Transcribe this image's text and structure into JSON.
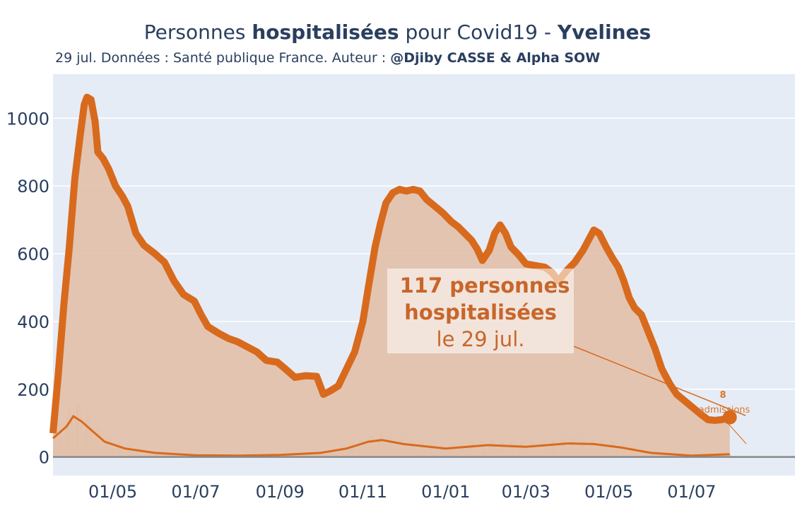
{
  "title": {
    "part1": "Personnes ",
    "part2": "hospitalisées",
    "part3": " pour Covid19 - ",
    "part4": "Yvelines"
  },
  "subtitle": {
    "prefix": "29 jul. Données : Santé publique France. Auteur : ",
    "authors": "@Djiby CASSE & Alpha SOW"
  },
  "colors": {
    "plot_bg": "#e5ecf6",
    "line": "#d86a1d",
    "fill": "#e2c0a8",
    "grid": "#ffffff",
    "zero_line": "#888888",
    "annotation": "#c8662a"
  },
  "annotation": {
    "line1": "117 personnes",
    "line2": "hospitalisées",
    "line3": "le 29 jul.",
    "small_value": "8",
    "small_label": "admissions"
  },
  "chart_data": {
    "type": "area",
    "x_axis": {
      "range": [
        "2020-03-18",
        "2021-09-15"
      ],
      "ticks": [
        {
          "date": "2020-05-01",
          "label": "01/05"
        },
        {
          "date": "2020-07-01",
          "label": "01/07"
        },
        {
          "date": "2020-09-01",
          "label": "01/09"
        },
        {
          "date": "2020-11-01",
          "label": "01/11"
        },
        {
          "date": "2021-01-01",
          "label": "01/01"
        },
        {
          "date": "2021-03-01",
          "label": "01/03"
        },
        {
          "date": "2021-05-01",
          "label": "01/05"
        },
        {
          "date": "2021-07-01",
          "label": "01/07"
        }
      ]
    },
    "y_axis": {
      "range": [
        -55,
        1130
      ],
      "ticks": [
        0,
        200,
        400,
        600,
        800,
        1000
      ],
      "grid": true
    },
    "series": [
      {
        "type": "area",
        "points": [
          [
            "2020-03-18",
            70
          ],
          [
            "2020-03-22",
            250
          ],
          [
            "2020-03-26",
            450
          ],
          [
            "2020-03-30",
            620
          ],
          [
            "2020-04-03",
            820
          ],
          [
            "2020-04-07",
            950
          ],
          [
            "2020-04-10",
            1040
          ],
          [
            "2020-04-12",
            1062
          ],
          [
            "2020-04-15",
            1055
          ],
          [
            "2020-04-18",
            990
          ],
          [
            "2020-04-20",
            900
          ],
          [
            "2020-04-24",
            880
          ],
          [
            "2020-04-28",
            850
          ],
          [
            "2020-05-03",
            800
          ],
          [
            "2020-05-08",
            770
          ],
          [
            "2020-05-12",
            740
          ],
          [
            "2020-05-18",
            660
          ],
          [
            "2020-05-24",
            625
          ],
          [
            "2020-06-01",
            600
          ],
          [
            "2020-06-08",
            575
          ],
          [
            "2020-06-15",
            520
          ],
          [
            "2020-06-22",
            480
          ],
          [
            "2020-06-30",
            460
          ],
          [
            "2020-07-05",
            420
          ],
          [
            "2020-07-10",
            385
          ],
          [
            "2020-07-18",
            365
          ],
          [
            "2020-07-25",
            350
          ],
          [
            "2020-08-01",
            340
          ],
          [
            "2020-08-08",
            325
          ],
          [
            "2020-08-15",
            310
          ],
          [
            "2020-08-22",
            285
          ],
          [
            "2020-08-30",
            280
          ],
          [
            "2020-09-05",
            260
          ],
          [
            "2020-09-12",
            235
          ],
          [
            "2020-09-20",
            240
          ],
          [
            "2020-09-28",
            238
          ],
          [
            "2020-10-03",
            185
          ],
          [
            "2020-10-08",
            195
          ],
          [
            "2020-10-14",
            210
          ],
          [
            "2020-10-20",
            260
          ],
          [
            "2020-10-26",
            310
          ],
          [
            "2020-11-01",
            400
          ],
          [
            "2020-11-05",
            500
          ],
          [
            "2020-11-10",
            620
          ],
          [
            "2020-11-14",
            690
          ],
          [
            "2020-11-18",
            750
          ],
          [
            "2020-11-23",
            780
          ],
          [
            "2020-11-28",
            790
          ],
          [
            "2020-12-03",
            785
          ],
          [
            "2020-12-08",
            790
          ],
          [
            "2020-12-13",
            785
          ],
          [
            "2020-12-18",
            760
          ],
          [
            "2020-12-24",
            740
          ],
          [
            "2020-12-30",
            720
          ],
          [
            "2021-01-05",
            695
          ],
          [
            "2021-01-10",
            680
          ],
          [
            "2021-01-15",
            660
          ],
          [
            "2021-01-20",
            640
          ],
          [
            "2021-01-24",
            615
          ],
          [
            "2021-01-28",
            580
          ],
          [
            "2021-02-02",
            610
          ],
          [
            "2021-02-06",
            660
          ],
          [
            "2021-02-10",
            685
          ],
          [
            "2021-02-14",
            660
          ],
          [
            "2021-02-18",
            620
          ],
          [
            "2021-02-24",
            595
          ],
          [
            "2021-03-01",
            570
          ],
          [
            "2021-03-08",
            565
          ],
          [
            "2021-03-15",
            560
          ],
          [
            "2021-03-20",
            545
          ],
          [
            "2021-03-25",
            520
          ],
          [
            "2021-03-31",
            550
          ],
          [
            "2021-04-06",
            575
          ],
          [
            "2021-04-12",
            610
          ],
          [
            "2021-04-16",
            640
          ],
          [
            "2021-04-20",
            670
          ],
          [
            "2021-04-24",
            660
          ],
          [
            "2021-04-29",
            620
          ],
          [
            "2021-05-04",
            585
          ],
          [
            "2021-05-08",
            560
          ],
          [
            "2021-05-12",
            520
          ],
          [
            "2021-05-16",
            470
          ],
          [
            "2021-05-20",
            440
          ],
          [
            "2021-05-25",
            420
          ],
          [
            "2021-05-30",
            370
          ],
          [
            "2021-06-04",
            320
          ],
          [
            "2021-06-09",
            260
          ],
          [
            "2021-06-15",
            215
          ],
          [
            "2021-06-20",
            185
          ],
          [
            "2021-06-26",
            165
          ],
          [
            "2021-07-02",
            145
          ],
          [
            "2021-07-08",
            125
          ],
          [
            "2021-07-13",
            110
          ],
          [
            "2021-07-18",
            108
          ],
          [
            "2021-07-23",
            110
          ],
          [
            "2021-07-29",
            117
          ]
        ]
      },
      {
        "type": "line",
        "name": "admissions",
        "points": [
          [
            "2020-03-18",
            55
          ],
          [
            "2020-03-28",
            90
          ],
          [
            "2020-04-02",
            120
          ],
          [
            "2020-04-08",
            105
          ],
          [
            "2020-04-15",
            80
          ],
          [
            "2020-04-25",
            45
          ],
          [
            "2020-05-10",
            25
          ],
          [
            "2020-06-01",
            12
          ],
          [
            "2020-07-01",
            5
          ],
          [
            "2020-08-01",
            4
          ],
          [
            "2020-09-01",
            6
          ],
          [
            "2020-10-01",
            12
          ],
          [
            "2020-10-20",
            25
          ],
          [
            "2020-11-05",
            45
          ],
          [
            "2020-11-15",
            50
          ],
          [
            "2020-12-01",
            38
          ],
          [
            "2021-01-01",
            25
          ],
          [
            "2021-02-01",
            35
          ],
          [
            "2021-03-01",
            30
          ],
          [
            "2021-04-01",
            40
          ],
          [
            "2021-04-20",
            38
          ],
          [
            "2021-05-10",
            28
          ],
          [
            "2021-06-01",
            12
          ],
          [
            "2021-07-01",
            4
          ],
          [
            "2021-07-29",
            8
          ]
        ]
      }
    ],
    "last_point": {
      "date": "2021-07-29",
      "value": 117
    }
  }
}
